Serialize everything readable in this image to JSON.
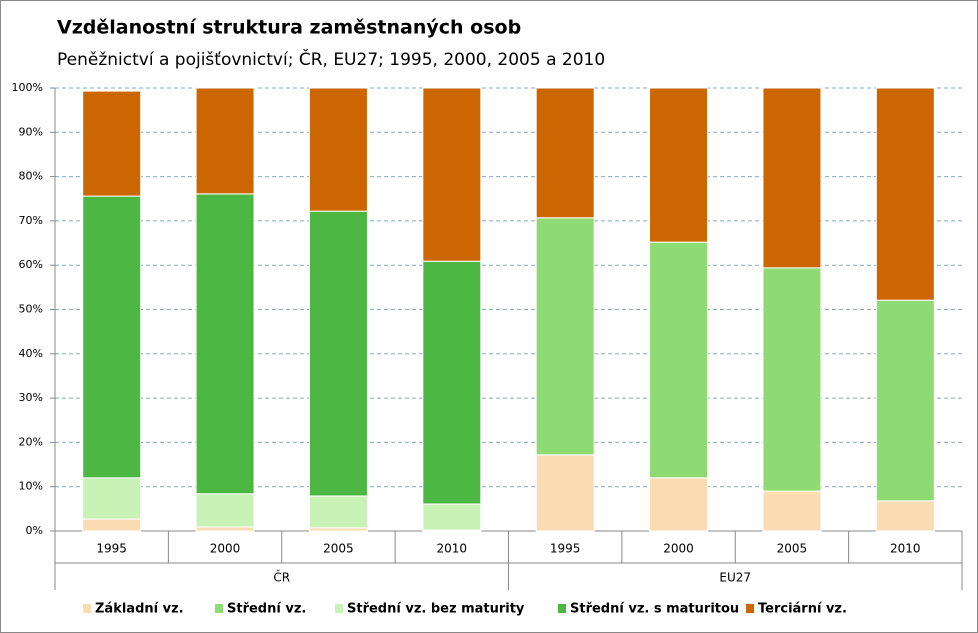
{
  "chart_data": {
    "type": "stacked_bar_percent",
    "title": "Vzdělanostní struktura zaměstnaných osob",
    "subtitle": "Peněžnictví a pojišťovnictví;  ČR, EU27; 1995,  2000,  2005  a 2010",
    "category_groups": [
      {
        "name": "ČR",
        "categories": [
          "1995",
          "2000",
          "2005",
          "2010"
        ]
      },
      {
        "name": "EU27",
        "categories": [
          "1995",
          "2000",
          "2005",
          "2010"
        ]
      }
    ],
    "series": [
      {
        "name": "Základní vz.",
        "color": "#fbdcb2",
        "values": [
          2.7,
          0.9,
          0.7,
          0.2,
          17.2,
          12.0,
          9.0,
          6.8
        ]
      },
      {
        "name": "Střední vz.",
        "color": "#8fdb73",
        "values": [
          null,
          null,
          null,
          null,
          53.5,
          53.2,
          50.4,
          45.3
        ]
      },
      {
        "name": "Střední vz. bez maturity",
        "color": "#c8f2b6",
        "values": [
          9.3,
          7.5,
          7.2,
          5.9,
          null,
          null,
          null,
          null
        ]
      },
      {
        "name": "Střední vz. s maturitou",
        "color": "#4cb843",
        "values": [
          63.6,
          67.7,
          64.3,
          54.8,
          null,
          null,
          null,
          null
        ]
      },
      {
        "name": "Terciární vz.",
        "color": "#cc6600",
        "values": [
          23.7,
          23.9,
          27.8,
          39.1,
          29.3,
          34.8,
          40.6,
          47.9
        ]
      }
    ],
    "ylim": [
      0,
      100
    ],
    "yticks": [
      {
        "value": 0,
        "label": "0%"
      },
      {
        "value": 10,
        "label": "10%"
      },
      {
        "value": 20,
        "label": "20%"
      },
      {
        "value": 30,
        "label": "30%"
      },
      {
        "value": 40,
        "label": "40%"
      },
      {
        "value": 50,
        "label": "50%"
      },
      {
        "value": 60,
        "label": "60%"
      },
      {
        "value": 70,
        "label": "70%"
      },
      {
        "value": 80,
        "label": "80%"
      },
      {
        "value": 90,
        "label": "90%"
      },
      {
        "value": 100,
        "label": "100%"
      }
    ],
    "grid": true,
    "legend": "bottom"
  }
}
